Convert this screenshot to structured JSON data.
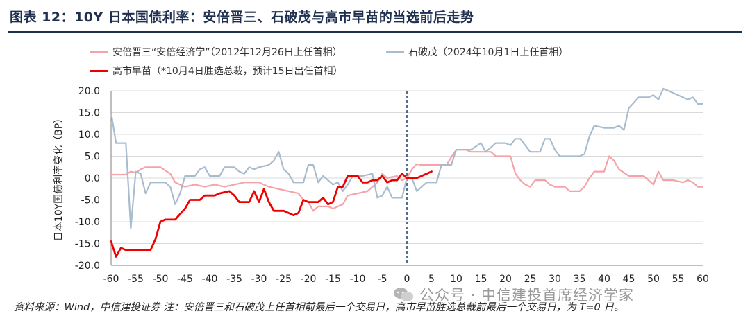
{
  "header": {
    "title": "图表 12：10Y 日本国债利率：安倍晋三、石破茂与高市早苗的当选前后走势"
  },
  "footer": {
    "source": "资料来源：Wind，中信建投证券 注：安倍晋三和石破茂上任首相前最后一个交易日，高市早苗胜选总裁前最后一个交易日，为 T=0 日。",
    "watermark": "公众号 · 中信建投首席经济学家"
  },
  "colors": {
    "abe": "#f4a3a8",
    "ishiba": "#a9bccd",
    "takaichi": "#ee0000",
    "dash": "#2a4a78"
  },
  "chart_data": {
    "type": "line",
    "ylabel": "日本10Y国债利率变化（BP）",
    "xlim": [
      -60,
      60
    ],
    "ylim": [
      -20,
      20
    ],
    "x_ticks": [
      -60,
      -55,
      -50,
      -45,
      -40,
      -35,
      -30,
      -25,
      -20,
      -15,
      -10,
      -5,
      0,
      5,
      10,
      15,
      20,
      25,
      30,
      35,
      40,
      45,
      50,
      55,
      60
    ],
    "y_ticks": [
      -20,
      -15,
      -10,
      -5,
      0,
      5,
      10,
      15,
      20
    ],
    "y_tick_labels": [
      "-20.0",
      "-15.0",
      "-10.0",
      "-5.0",
      "0.0",
      "5.0",
      "10.0",
      "15.0",
      "20.0"
    ],
    "vertical_line_x": 0,
    "series": [
      {
        "name": "安倍晋三“安倍经济学”（2012年12月26日上任首相）",
        "key": "abe",
        "points": [
          [
            -60,
            0.8
          ],
          [
            -57,
            0.8
          ],
          [
            -56,
            1.5
          ],
          [
            -55,
            1.2
          ],
          [
            -54,
            2.0
          ],
          [
            -53,
            2.5
          ],
          [
            -50,
            2.5
          ],
          [
            -48,
            1.0
          ],
          [
            -47,
            -1.0
          ],
          [
            -45,
            -2.0
          ],
          [
            -43,
            -1.5
          ],
          [
            -41,
            -2.0
          ],
          [
            -39,
            -1.5
          ],
          [
            -37,
            -2.0
          ],
          [
            -35,
            -1.5
          ],
          [
            -33,
            -1.0
          ],
          [
            -30,
            -1.0
          ],
          [
            -28,
            -2.0
          ],
          [
            -26,
            -2.5
          ],
          [
            -24,
            -3.0
          ],
          [
            -22,
            -3.5
          ],
          [
            -21,
            -5.0
          ],
          [
            -20,
            -5.5
          ],
          [
            -19,
            -7.5
          ],
          [
            -18,
            -6.5
          ],
          [
            -16,
            -6.5
          ],
          [
            -15,
            -7.0
          ],
          [
            -13,
            -6.0
          ],
          [
            -12,
            -4.0
          ],
          [
            -10,
            -3.5
          ],
          [
            -8,
            -3.0
          ],
          [
            -6,
            -1.0
          ],
          [
            -5,
            1.0
          ],
          [
            -4,
            0.0
          ],
          [
            -2,
            0.5
          ],
          [
            -1,
            -0.5
          ],
          [
            0,
            0.0
          ],
          [
            1,
            2.0
          ],
          [
            2,
            3.2
          ],
          [
            3,
            3.0
          ],
          [
            5,
            3.0
          ],
          [
            8,
            3.0
          ],
          [
            10,
            6.5
          ],
          [
            12,
            6.5
          ],
          [
            13,
            6.0
          ],
          [
            15,
            6.0
          ],
          [
            17,
            6.0
          ],
          [
            18,
            5.0
          ],
          [
            21,
            5.0
          ],
          [
            22,
            1.0
          ],
          [
            23,
            -0.5
          ],
          [
            24,
            -1.5
          ],
          [
            25,
            -2.0
          ],
          [
            26,
            -0.5
          ],
          [
            28,
            -0.5
          ],
          [
            29,
            -1.5
          ],
          [
            30,
            -2.0
          ],
          [
            32,
            -2.0
          ],
          [
            33,
            -3.0
          ],
          [
            35,
            -3.0
          ],
          [
            36,
            -2.0
          ],
          [
            37,
            0.0
          ],
          [
            38,
            1.5
          ],
          [
            40,
            1.5
          ],
          [
            41,
            5.0
          ],
          [
            42,
            4.0
          ],
          [
            43,
            2.0
          ],
          [
            45,
            0.5
          ],
          [
            48,
            0.5
          ],
          [
            50,
            -1.5
          ],
          [
            51,
            1.5
          ],
          [
            52,
            -0.5
          ],
          [
            54,
            -0.5
          ],
          [
            56,
            -1.0
          ],
          [
            57,
            -0.5
          ],
          [
            58,
            -1.0
          ],
          [
            59,
            -2.0
          ],
          [
            60,
            -2.0
          ]
        ]
      },
      {
        "name": "石破茂（2024年10月1日上任首相）",
        "key": "ishiba",
        "points": [
          [
            -60,
            15.0
          ],
          [
            -59,
            8.0
          ],
          [
            -57,
            8.0
          ],
          [
            -56,
            -11.5
          ],
          [
            -55,
            1.5
          ],
          [
            -54,
            1.0
          ],
          [
            -53,
            -3.5
          ],
          [
            -52,
            -1.0
          ],
          [
            -49,
            -1.0
          ],
          [
            -48,
            -2.0
          ],
          [
            -47,
            -6.0
          ],
          [
            -46,
            -3.5
          ],
          [
            -45,
            0.5
          ],
          [
            -43,
            0.5
          ],
          [
            -42,
            2.0
          ],
          [
            -41,
            2.5
          ],
          [
            -40,
            0.5
          ],
          [
            -38,
            0.5
          ],
          [
            -37,
            2.5
          ],
          [
            -35,
            2.5
          ],
          [
            -34,
            1.5
          ],
          [
            -33,
            1.0
          ],
          [
            -32,
            2.5
          ],
          [
            -31,
            2.0
          ],
          [
            -30,
            2.5
          ],
          [
            -28,
            3.0
          ],
          [
            -27,
            4.0
          ],
          [
            -26,
            6.0
          ],
          [
            -25,
            2.0
          ],
          [
            -24,
            1.0
          ],
          [
            -23,
            -1.0
          ],
          [
            -21,
            -1.0
          ],
          [
            -20,
            3.0
          ],
          [
            -19,
            3.0
          ],
          [
            -18,
            -1.0
          ],
          [
            -17,
            0.5
          ],
          [
            -15,
            -1.5
          ],
          [
            -14,
            -1.0
          ],
          [
            -13,
            -3.0
          ],
          [
            -12,
            -1.5
          ],
          [
            -11,
            0.5
          ],
          [
            -9,
            0.5
          ],
          [
            -7,
            1.0
          ],
          [
            -6,
            -4.5
          ],
          [
            -5,
            -4.0
          ],
          [
            -4,
            -2.0
          ],
          [
            -3,
            -4.5
          ],
          [
            -1,
            -4.5
          ],
          [
            0,
            0.0
          ],
          [
            1,
            0.0
          ],
          [
            2,
            -3.0
          ],
          [
            3,
            -2.0
          ],
          [
            4,
            -1.0
          ],
          [
            6,
            -1.0
          ],
          [
            7,
            3.0
          ],
          [
            8,
            3.0
          ],
          [
            9,
            3.0
          ],
          [
            10,
            6.5
          ],
          [
            13,
            6.5
          ],
          [
            15,
            8.0
          ],
          [
            16,
            6.0
          ],
          [
            17,
            7.0
          ],
          [
            18,
            8.0
          ],
          [
            20,
            8.0
          ],
          [
            21,
            7.5
          ],
          [
            22,
            9.0
          ],
          [
            23,
            9.0
          ],
          [
            24,
            7.5
          ],
          [
            25,
            6.0
          ],
          [
            27,
            6.0
          ],
          [
            28,
            9.0
          ],
          [
            29,
            9.0
          ],
          [
            30,
            6.5
          ],
          [
            31,
            5.0
          ],
          [
            33,
            5.0
          ],
          [
            35,
            5.0
          ],
          [
            36,
            5.5
          ],
          [
            37,
            9.5
          ],
          [
            38,
            12.0
          ],
          [
            40,
            11.5
          ],
          [
            42,
            11.5
          ],
          [
            43,
            12.0
          ],
          [
            44,
            11.0
          ],
          [
            45,
            16.0
          ],
          [
            47,
            18.5
          ],
          [
            49,
            18.5
          ],
          [
            50,
            19.0
          ],
          [
            51,
            18.0
          ],
          [
            52,
            20.5
          ],
          [
            55,
            19.0
          ],
          [
            57,
            18.0
          ],
          [
            58,
            18.5
          ],
          [
            59,
            17.0
          ],
          [
            60,
            17.0
          ]
        ]
      },
      {
        "name": "高市早苗（*10月4日胜选总裁，预计15日出任首相）",
        "key": "takaichi",
        "points": [
          [
            -60,
            -14.5
          ],
          [
            -59,
            -18.0
          ],
          [
            -58,
            -16.0
          ],
          [
            -57,
            -16.5
          ],
          [
            -52,
            -16.5
          ],
          [
            -51,
            -14.0
          ],
          [
            -50,
            -10.0
          ],
          [
            -49,
            -9.5
          ],
          [
            -47,
            -9.5
          ],
          [
            -45,
            -7.0
          ],
          [
            -44,
            -5.0
          ],
          [
            -42,
            -5.0
          ],
          [
            -41,
            -4.0
          ],
          [
            -39,
            -4.0
          ],
          [
            -38,
            -3.5
          ],
          [
            -36,
            -3.0
          ],
          [
            -35,
            -4.0
          ],
          [
            -34,
            -5.5
          ],
          [
            -32,
            -5.5
          ],
          [
            -31,
            -3.0
          ],
          [
            -30,
            -5.5
          ],
          [
            -29,
            -2.5
          ],
          [
            -28,
            -5.5
          ],
          [
            -27,
            -7.5
          ],
          [
            -25,
            -7.5
          ],
          [
            -24,
            -8.0
          ],
          [
            -23,
            -8.5
          ],
          [
            -22,
            -8.0
          ],
          [
            -21,
            -5.0
          ],
          [
            -20,
            -5.5
          ],
          [
            -18,
            -5.5
          ],
          [
            -17,
            -4.5
          ],
          [
            -16,
            -6.0
          ],
          [
            -15,
            -5.5
          ],
          [
            -14,
            -2.0
          ],
          [
            -13,
            -2.0
          ],
          [
            -12,
            0.5
          ],
          [
            -10,
            0.5
          ],
          [
            -9,
            -1.0
          ],
          [
            -8,
            -1.0
          ],
          [
            -7,
            -0.5
          ],
          [
            -6,
            -0.5
          ],
          [
            -5,
            0.5
          ],
          [
            -4,
            -1.0
          ],
          [
            -3,
            -0.5
          ],
          [
            -2,
            -0.5
          ],
          [
            -1,
            1.0
          ],
          [
            0,
            0.0
          ],
          [
            1,
            0.0
          ],
          [
            2,
            0.0
          ],
          [
            3,
            0.5
          ],
          [
            4,
            1.0
          ],
          [
            5,
            1.5
          ]
        ]
      }
    ]
  },
  "legend": [
    {
      "label": "安倍晋三“安倍经济学”（2012年12月26日上任首相）",
      "key": "abe"
    },
    {
      "label": "石破茂（2024年10月1日上任首相）",
      "key": "ishiba"
    },
    {
      "label": "高市早苗（*10月4日胜选总裁，预计15日出任首相）",
      "key": "takaichi"
    }
  ]
}
